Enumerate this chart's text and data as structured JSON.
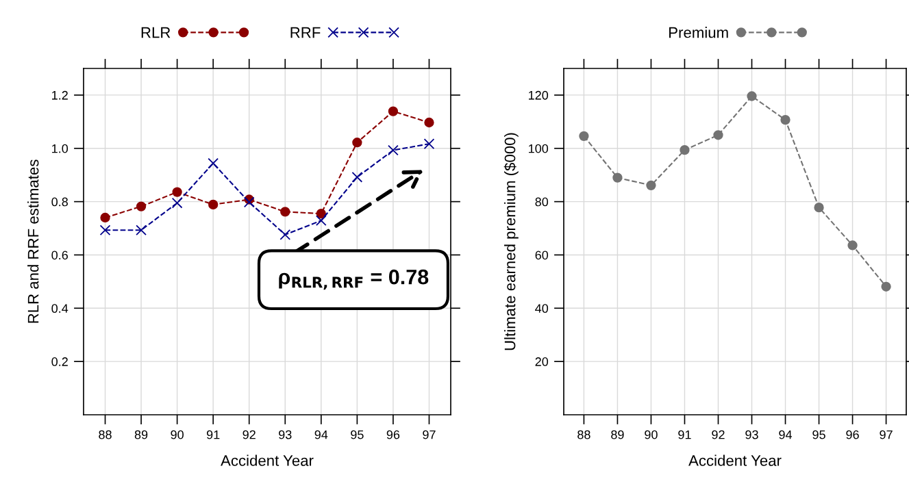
{
  "chart_data": [
    {
      "type": "line",
      "xlabel": "Accident Year",
      "ylabel": "RLR and RRF estimates",
      "categories": [
        "88",
        "89",
        "90",
        "91",
        "92",
        "93",
        "94",
        "95",
        "96",
        "97"
      ],
      "series": [
        {
          "name": "RLR",
          "color": "#8b0000",
          "marker": "circle",
          "values": [
            0.74,
            0.782,
            0.836,
            0.789,
            0.808,
            0.762,
            0.755,
            1.022,
            1.139,
            1.097
          ]
        },
        {
          "name": "RRF",
          "color": "#00008b",
          "marker": "cross",
          "values": [
            0.693,
            0.693,
            0.795,
            0.944,
            0.798,
            0.676,
            0.729,
            0.892,
            0.993,
            1.017
          ]
        }
      ],
      "line_style": "dashed",
      "ylim": [
        0,
        1.3
      ],
      "yticks": [
        0.2,
        0.4,
        0.6,
        0.8,
        {
          "value": 1,
          "label": "1.0"
        },
        1.2
      ],
      "grid": true,
      "legend": "top",
      "annotations": [
        "ρ$_{RLR,RRF}$ = 0.78"
      ]
    },
    {
      "type": "line",
      "xlabel": "Accident Year",
      "ylabel": "Ultimate earned premium ($000)",
      "categories": [
        "88",
        "89",
        "90",
        "91",
        "92",
        "93",
        "94",
        "95",
        "96",
        "97"
      ],
      "series": [
        {
          "name": "Premium",
          "color": "#737373",
          "marker": "circle",
          "values": [
            104.6,
            89.0,
            86.1,
            99.4,
            105.0,
            119.6,
            110.7,
            77.8,
            63.6,
            48.1
          ]
        }
      ],
      "line_style": "dashed",
      "ylim": [
        0,
        130
      ],
      "yticks": [
        20,
        40,
        60,
        80,
        100,
        120
      ],
      "grid": true,
      "legend": "top"
    }
  ]
}
